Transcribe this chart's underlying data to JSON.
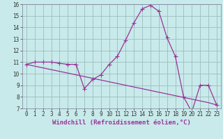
{
  "xlabel": "Windchill (Refroidissement éolien,°C)",
  "bg_color": "#c8eaea",
  "grid_color": "#9bbdbd",
  "line_color": "#993399",
  "spine_color": "#7a7a9a",
  "xlim": [
    -0.5,
    23.5
  ],
  "ylim": [
    7,
    16
  ],
  "yticks": [
    7,
    8,
    9,
    10,
    11,
    12,
    13,
    14,
    15,
    16
  ],
  "xticks": [
    0,
    1,
    2,
    3,
    4,
    5,
    6,
    7,
    8,
    9,
    10,
    11,
    12,
    13,
    14,
    15,
    16,
    17,
    18,
    19,
    20,
    21,
    22,
    23
  ],
  "hours": [
    0,
    1,
    2,
    3,
    4,
    5,
    6,
    7,
    8,
    9,
    10,
    11,
    12,
    13,
    14,
    15,
    16,
    17,
    18,
    19,
    20,
    21,
    22,
    23
  ],
  "temp_line": [
    10.8,
    11.0,
    11.0,
    11.0,
    10.9,
    10.8,
    10.8,
    8.7,
    9.5,
    9.9,
    10.8,
    11.5,
    12.9,
    14.4,
    15.6,
    15.9,
    15.4,
    13.1,
    11.5,
    8.0,
    6.7,
    9.0,
    9.0,
    7.3
  ],
  "trend_line": [
    10.8,
    10.65,
    10.5,
    10.35,
    10.2,
    10.05,
    9.9,
    9.75,
    9.6,
    9.45,
    9.3,
    9.15,
    9.0,
    8.85,
    8.7,
    8.55,
    8.4,
    8.25,
    8.1,
    7.95,
    7.8,
    7.65,
    7.5,
    7.3
  ],
  "marker": "+",
  "marker_size": 4,
  "marker_lw": 0.8,
  "linewidth": 0.9,
  "tick_fontsize": 5.5,
  "label_fontsize": 6.5
}
